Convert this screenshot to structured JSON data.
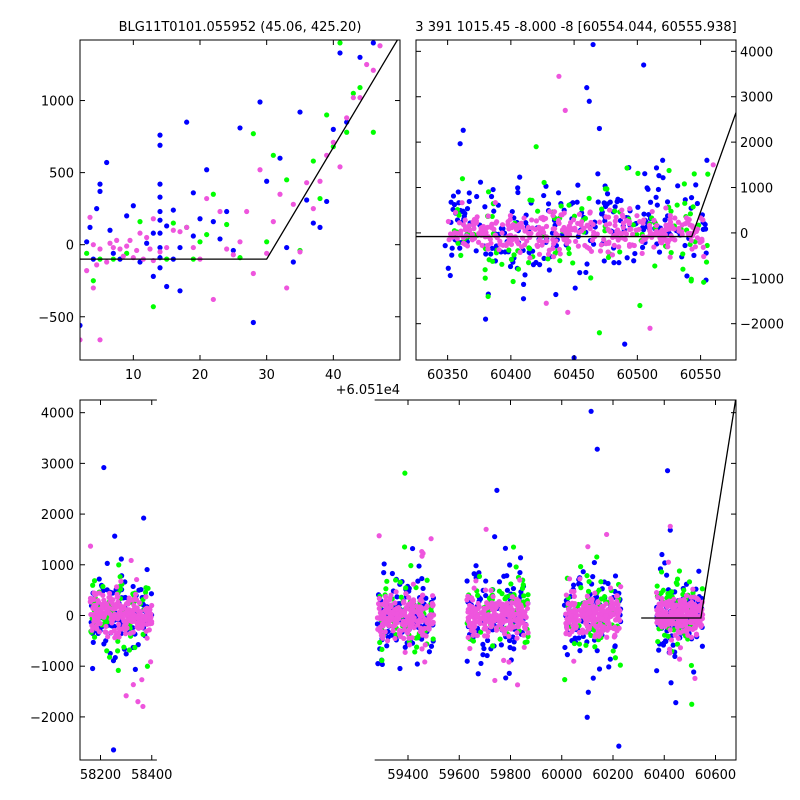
{
  "chart_data": [
    {
      "type": "scatter",
      "title": "BLG11T0101.055952 (45.06, 425.20)",
      "xlim": [
        2,
        50
      ],
      "ylim": [
        -800,
        1420
      ],
      "xticks": [
        10,
        20,
        30,
        40
      ],
      "yticks": [
        -500,
        0,
        500,
        1000
      ],
      "offset_label": "+6.051e4",
      "series": [
        {
          "color": "#0000ff",
          "points": [
            [
              2,
              -560
            ],
            [
              3,
              20
            ],
            [
              3.5,
              120
            ],
            [
              4,
              -100
            ],
            [
              4.5,
              250
            ],
            [
              5,
              420
            ],
            [
              5,
              370
            ],
            [
              6,
              570
            ],
            [
              6.5,
              100
            ],
            [
              7,
              -60
            ],
            [
              8,
              -100
            ],
            [
              9,
              200
            ],
            [
              10,
              270
            ],
            [
              11,
              -120
            ],
            [
              12,
              10
            ],
            [
              13,
              -220
            ],
            [
              13,
              80
            ],
            [
              14,
              760
            ],
            [
              14,
              690
            ],
            [
              14,
              420
            ],
            [
              14,
              330
            ],
            [
              14,
              230
            ],
            [
              14,
              170
            ],
            [
              14,
              80
            ],
            [
              14,
              -20
            ],
            [
              14,
              -90
            ],
            [
              14,
              -160
            ],
            [
              15,
              -290
            ],
            [
              15,
              130
            ],
            [
              16,
              240
            ],
            [
              16,
              -100
            ],
            [
              17,
              -320
            ],
            [
              17,
              -20
            ],
            [
              18,
              850
            ],
            [
              19,
              360
            ],
            [
              19,
              60
            ],
            [
              20,
              180
            ],
            [
              21,
              520
            ],
            [
              22,
              160
            ],
            [
              23,
              40
            ],
            [
              24,
              230
            ],
            [
              25,
              -40
            ],
            [
              26,
              810
            ],
            [
              28,
              -540
            ],
            [
              29,
              990
            ],
            [
              30,
              440
            ],
            [
              32,
              600
            ],
            [
              33,
              -20
            ],
            [
              34,
              -120
            ],
            [
              35,
              920
            ],
            [
              36,
              310
            ],
            [
              37,
              150
            ],
            [
              38,
              120
            ],
            [
              39,
              300
            ],
            [
              40,
              800
            ],
            [
              41,
              1330
            ],
            [
              42,
              850
            ],
            [
              44,
              1300
            ],
            [
              46,
              1400
            ]
          ]
        },
        {
          "color": "#00ff00",
          "points": [
            [
              3,
              -60
            ],
            [
              4,
              -250
            ],
            [
              5,
              -100
            ],
            [
              7,
              -100
            ],
            [
              9,
              -60
            ],
            [
              11,
              160
            ],
            [
              13,
              -430
            ],
            [
              15,
              -100
            ],
            [
              16,
              150
            ],
            [
              18,
              120
            ],
            [
              19,
              -100
            ],
            [
              20,
              20
            ],
            [
              21,
              70
            ],
            [
              22,
              350
            ],
            [
              24,
              140
            ],
            [
              26,
              -90
            ],
            [
              28,
              770
            ],
            [
              30,
              20
            ],
            [
              31,
              620
            ],
            [
              33,
              450
            ],
            [
              35,
              -40
            ],
            [
              37,
              580
            ],
            [
              38,
              320
            ],
            [
              39,
              900
            ],
            [
              40,
              680
            ],
            [
              41,
              1400
            ],
            [
              42,
              780
            ],
            [
              43,
              1050
            ],
            [
              44,
              1090
            ],
            [
              46,
              780
            ],
            [
              48,
              1440
            ]
          ]
        },
        {
          "color": "#ee55dd",
          "points": [
            [
              2,
              -660
            ],
            [
              3,
              -180
            ],
            [
              3.5,
              190
            ],
            [
              4,
              -300
            ],
            [
              4,
              0
            ],
            [
              4.5,
              -140
            ],
            [
              5,
              -660
            ],
            [
              5,
              -30
            ],
            [
              6,
              -120
            ],
            [
              6.5,
              10
            ],
            [
              7,
              -20
            ],
            [
              7.5,
              30
            ],
            [
              8,
              -30
            ],
            [
              8.5,
              -80
            ],
            [
              9,
              -10
            ],
            [
              9.5,
              30
            ],
            [
              10,
              -90
            ],
            [
              10.5,
              -40
            ],
            [
              11,
              80
            ],
            [
              11.5,
              -100
            ],
            [
              12,
              50
            ],
            [
              12.5,
              -30
            ],
            [
              13,
              180
            ],
            [
              13,
              -110
            ],
            [
              14,
              -50
            ],
            [
              15,
              -20
            ],
            [
              16,
              100
            ],
            [
              17,
              90
            ],
            [
              18,
              120
            ],
            [
              19,
              -20
            ],
            [
              20,
              -100
            ],
            [
              21,
              320
            ],
            [
              22,
              -380
            ],
            [
              23,
              230
            ],
            [
              24,
              -30
            ],
            [
              25,
              -70
            ],
            [
              26,
              20
            ],
            [
              27,
              230
            ],
            [
              28,
              -200
            ],
            [
              29,
              520
            ],
            [
              30,
              -60
            ],
            [
              31,
              160
            ],
            [
              32,
              350
            ],
            [
              33,
              -300
            ],
            [
              34,
              280
            ],
            [
              35,
              -50
            ],
            [
              36,
              430
            ],
            [
              37,
              250
            ],
            [
              38,
              440
            ],
            [
              39,
              620
            ],
            [
              40,
              710
            ],
            [
              41,
              540
            ],
            [
              42,
              880
            ],
            [
              43,
              1020
            ],
            [
              44,
              1020
            ],
            [
              45,
              1250
            ],
            [
              46,
              1210
            ],
            [
              47,
              1380
            ]
          ]
        }
      ],
      "model": [
        [
          2,
          -100
        ],
        [
          30,
          -100
        ],
        [
          50,
          1450
        ]
      ]
    },
    {
      "type": "scatter",
      "title": "3 391 1015.45 -8.000 -8 [60554.044, 60555.938]",
      "xlim": [
        60325,
        60578
      ],
      "ylim": [
        -2800,
        4250
      ],
      "xticks": [
        60350,
        60400,
        60450,
        60500,
        60550
      ],
      "yticks": [
        -2000,
        -1000,
        0,
        1000,
        2000,
        3000,
        4000
      ],
      "y_axis_side": "right",
      "series": [
        {
          "color": "#0000ff",
          "band": {
            "x0": 60348,
            "x1": 60556,
            "ymin": -1200,
            "ymax": 1500
          },
          "count": 230,
          "seed": 11,
          "outliers": [
            [
              60465,
              4150
            ],
            [
              60460,
              3200
            ],
            [
              60462,
              2900
            ],
            [
              60470,
              2300
            ],
            [
              60505,
              3700
            ],
            [
              60520,
              1600
            ],
            [
              60555,
              1600
            ],
            [
              60450,
              -2750
            ],
            [
              60490,
              -2450
            ],
            [
              60380,
              -1900
            ],
            [
              60410,
              -1450
            ]
          ]
        },
        {
          "color": "#00ff00",
          "band": {
            "x0": 60350,
            "x1": 60556,
            "ymin": -1100,
            "ymax": 1300
          },
          "count": 120,
          "seed": 23,
          "outliers": [
            [
              60382,
              -1400
            ],
            [
              60470,
              -2200
            ],
            [
              60502,
              -1600
            ],
            [
              60420,
              1900
            ],
            [
              60545,
              1300
            ]
          ]
        },
        {
          "color": "#ee55dd",
          "band": {
            "x0": 60350,
            "x1": 60553,
            "ymin": -500,
            "ymax": 500
          },
          "count": 360,
          "seed": 37,
          "outliers": [
            [
              60443,
              2700
            ],
            [
              60438,
              3450
            ],
            [
              60428,
              -1550
            ],
            [
              60445,
              -1750
            ],
            [
              60560,
              1500
            ],
            [
              60510,
              -2100
            ]
          ]
        }
      ],
      "model": [
        [
          60325,
          -80
        ],
        [
          60543,
          -80
        ],
        [
          60578,
          2650
        ]
      ]
    },
    {
      "type": "scatter",
      "xlim": [
        58120,
        60680
      ],
      "ylim": [
        -2850,
        4250
      ],
      "xticks": [
        58200,
        58400,
        59400,
        59600,
        59800,
        60000,
        60200,
        60400,
        60600
      ],
      "yticks": [
        -2000,
        -1000,
        0,
        1000,
        2000,
        3000,
        4000
      ],
      "gap": [
        58420,
        59270
      ],
      "seasons": [
        [
          58160,
          58400
        ],
        [
          59280,
          59500
        ],
        [
          59630,
          59870
        ],
        [
          60010,
          60230
        ],
        [
          60370,
          60550
        ]
      ],
      "series": [
        {
          "color": "#0000ff",
          "count": 120,
          "seed": 101
        },
        {
          "color": "#00ff00",
          "count": 70,
          "seed": 202
        },
        {
          "color": "#ee55dd",
          "count": 220,
          "seed": 303
        }
      ],
      "model": [
        [
          60310,
          -50
        ],
        [
          60543,
          -50
        ],
        [
          60680,
          4300
        ]
      ]
    }
  ]
}
